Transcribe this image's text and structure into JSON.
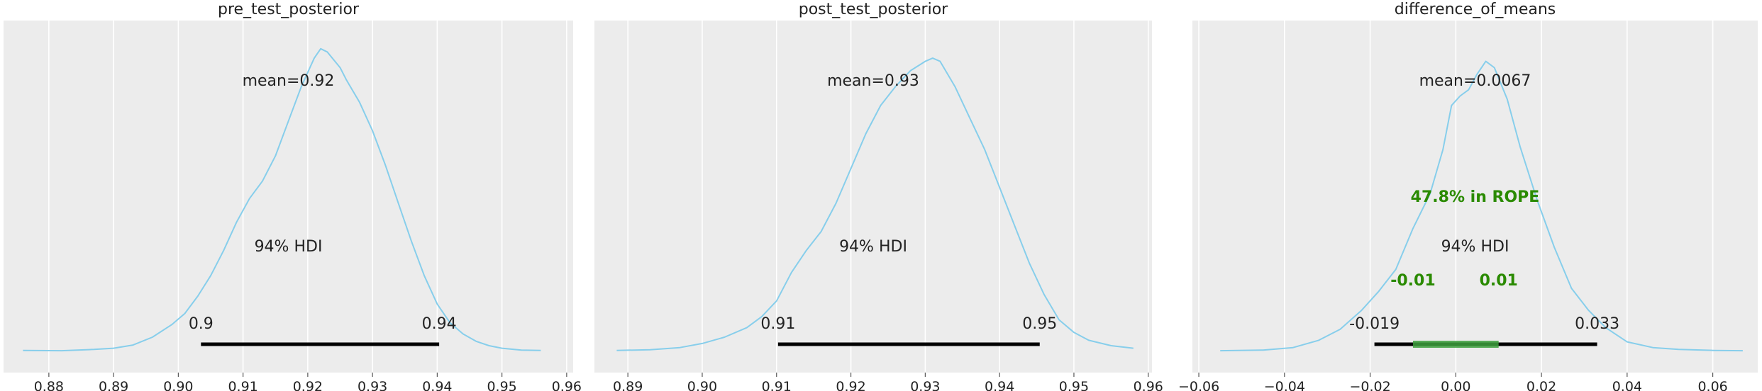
{
  "chart_data": [
    {
      "type": "density",
      "title": "pre_test_posterior",
      "xlim": [
        0.873,
        0.961
      ],
      "ticks": [
        0.88,
        0.89,
        0.9,
        0.91,
        0.92,
        0.93,
        0.94,
        0.95,
        0.96
      ],
      "tick_labels": [
        "0.88",
        "0.89",
        "0.90",
        "0.91",
        "0.92",
        "0.93",
        "0.94",
        "0.95",
        "0.96"
      ],
      "curve": [
        [
          0.876,
          0.003
        ],
        [
          0.882,
          0.002
        ],
        [
          0.887,
          0.006
        ],
        [
          0.89,
          0.01
        ],
        [
          0.893,
          0.02
        ],
        [
          0.896,
          0.045
        ],
        [
          0.899,
          0.085
        ],
        [
          0.901,
          0.12
        ],
        [
          0.903,
          0.175
        ],
        [
          0.905,
          0.24
        ],
        [
          0.907,
          0.32
        ],
        [
          0.909,
          0.41
        ],
        [
          0.911,
          0.485
        ],
        [
          0.913,
          0.54
        ],
        [
          0.915,
          0.62
        ],
        [
          0.917,
          0.73
        ],
        [
          0.919,
          0.84
        ],
        [
          0.921,
          0.93
        ],
        [
          0.922,
          0.96
        ],
        [
          0.923,
          0.95
        ],
        [
          0.925,
          0.9
        ],
        [
          0.926,
          0.86
        ],
        [
          0.928,
          0.79
        ],
        [
          0.93,
          0.7
        ],
        [
          0.932,
          0.59
        ],
        [
          0.934,
          0.47
        ],
        [
          0.936,
          0.35
        ],
        [
          0.938,
          0.24
        ],
        [
          0.94,
          0.15
        ],
        [
          0.942,
          0.09
        ],
        [
          0.944,
          0.055
        ],
        [
          0.946,
          0.032
        ],
        [
          0.948,
          0.018
        ],
        [
          0.95,
          0.01
        ],
        [
          0.953,
          0.004
        ],
        [
          0.956,
          0.003
        ]
      ],
      "mean": 0.92,
      "mean_label": "mean=0.92",
      "hdi": [
        0.9035,
        0.9403
      ],
      "hdi_label": "94% HDI",
      "hdi_low_label": "0.9",
      "hdi_high_label": "0.94"
    },
    {
      "type": "density",
      "title": "post_test_posterior",
      "xlim": [
        0.8855,
        0.9605
      ],
      "ticks": [
        0.89,
        0.9,
        0.91,
        0.92,
        0.93,
        0.94,
        0.95,
        0.96
      ],
      "tick_labels": [
        "0.89",
        "0.90",
        "0.91",
        "0.92",
        "0.93",
        "0.94",
        "0.95",
        "0.96"
      ],
      "curve": [
        [
          0.8885,
          0.003
        ],
        [
          0.893,
          0.005
        ],
        [
          0.897,
          0.012
        ],
        [
          0.9,
          0.025
        ],
        [
          0.903,
          0.045
        ],
        [
          0.906,
          0.075
        ],
        [
          0.908,
          0.11
        ],
        [
          0.91,
          0.16
        ],
        [
          0.912,
          0.25
        ],
        [
          0.914,
          0.32
        ],
        [
          0.916,
          0.38
        ],
        [
          0.918,
          0.47
        ],
        [
          0.92,
          0.58
        ],
        [
          0.922,
          0.69
        ],
        [
          0.924,
          0.78
        ],
        [
          0.926,
          0.84
        ],
        [
          0.928,
          0.89
        ],
        [
          0.93,
          0.92
        ],
        [
          0.931,
          0.93
        ],
        [
          0.932,
          0.92
        ],
        [
          0.934,
          0.84
        ],
        [
          0.936,
          0.74
        ],
        [
          0.938,
          0.64
        ],
        [
          0.94,
          0.52
        ],
        [
          0.942,
          0.4
        ],
        [
          0.944,
          0.28
        ],
        [
          0.946,
          0.18
        ],
        [
          0.948,
          0.1
        ],
        [
          0.95,
          0.06
        ],
        [
          0.952,
          0.035
        ],
        [
          0.955,
          0.018
        ],
        [
          0.958,
          0.01
        ]
      ],
      "mean": 0.93,
      "mean_label": "mean=0.93",
      "hdi": [
        0.9102,
        0.9454
      ],
      "hdi_label": "94% HDI",
      "hdi_low_label": "0.91",
      "hdi_high_label": "0.95"
    },
    {
      "type": "density",
      "title": "difference_of_means",
      "xlim": [
        -0.0615,
        0.0705
      ],
      "ticks": [
        -0.06,
        -0.04,
        -0.02,
        0.0,
        0.02,
        0.04,
        0.06
      ],
      "tick_labels": [
        "−0.06",
        "−0.04",
        "−0.02",
        "0.00",
        "0.02",
        "0.04",
        "0.06"
      ],
      "curve": [
        [
          -0.055,
          0.002
        ],
        [
          -0.045,
          0.004
        ],
        [
          -0.038,
          0.012
        ],
        [
          -0.032,
          0.035
        ],
        [
          -0.027,
          0.07
        ],
        [
          -0.022,
          0.13
        ],
        [
          -0.018,
          0.19
        ],
        [
          -0.014,
          0.26
        ],
        [
          -0.01,
          0.39
        ],
        [
          -0.006,
          0.5
        ],
        [
          -0.003,
          0.64
        ],
        [
          -0.001,
          0.78
        ],
        [
          0.001,
          0.81
        ],
        [
          0.003,
          0.83
        ],
        [
          0.005,
          0.88
        ],
        [
          0.007,
          0.92
        ],
        [
          0.009,
          0.9
        ],
        [
          0.012,
          0.8
        ],
        [
          0.015,
          0.65
        ],
        [
          0.019,
          0.48
        ],
        [
          0.023,
          0.33
        ],
        [
          0.027,
          0.2
        ],
        [
          0.031,
          0.13
        ],
        [
          0.035,
          0.075
        ],
        [
          0.04,
          0.03
        ],
        [
          0.046,
          0.012
        ],
        [
          0.052,
          0.006
        ],
        [
          0.06,
          0.003
        ],
        [
          0.067,
          0.002
        ]
      ],
      "mean": 0.0067,
      "mean_label": "mean=0.0067",
      "hdi": [
        -0.019,
        0.033
      ],
      "hdi_label": "94% HDI",
      "hdi_low_label": "-0.019",
      "hdi_high_label": "0.033",
      "rope": [
        -0.01,
        0.01
      ],
      "rope_label": "47.8% in ROPE",
      "rope_low_label": "-0.01",
      "rope_high_label": "0.01"
    }
  ],
  "colors": {
    "curve": "#87ceeb",
    "background": "#ececec",
    "grid": "#ffffff",
    "hdi": "#000000",
    "rope_bar": "#3da03d",
    "rope_text": "#2a8a00",
    "text": "#222222"
  }
}
